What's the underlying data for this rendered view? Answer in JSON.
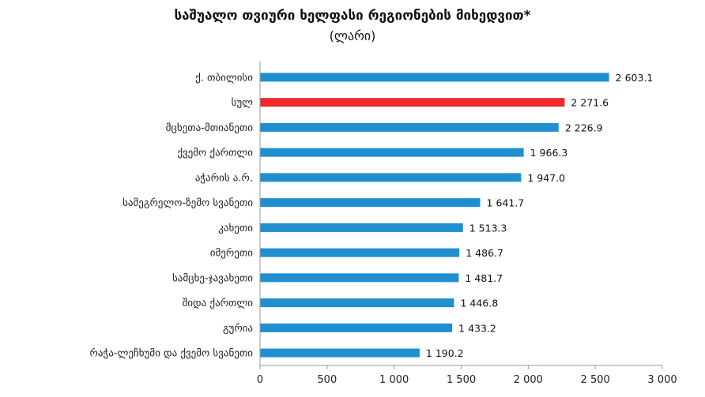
{
  "chart_data": {
    "type": "bar",
    "orientation": "horizontal",
    "title": "საშუალო თვიური ხელფასი რეგიონების მიხედვით*",
    "subtitle": "(ლარი)",
    "categories": [
      "ქ. თბილისი",
      "სულ",
      "მცხეთა-მთიანეთი",
      "ქვემო ქართლი",
      "აჭარის ა.რ.",
      "სამეგრელო-ზემო სვანეთი",
      "კახეთი",
      "იმერეთი",
      "სამცხე-ჯავახეთი",
      "შიდა ქართლი",
      "გურია",
      "რაჭა-ლეჩხუმი და ქვემო სვანეთი"
    ],
    "values": [
      2603.1,
      2271.6,
      2226.9,
      1966.3,
      1947.0,
      1641.7,
      1513.3,
      1486.7,
      1481.7,
      1446.8,
      1433.2,
      1190.2
    ],
    "value_labels": [
      "2 603.1",
      "2 271.6",
      "2 226.9",
      "1 966.3",
      "1 947.0",
      "1 641.7",
      "1 513.3",
      "1 486.7",
      "1 481.7",
      "1 446.8",
      "1 433.2",
      "1 190.2"
    ],
    "highlight_index": 1,
    "xlim": [
      0,
      3000
    ],
    "xticks": [
      0,
      500,
      1000,
      1500,
      2000,
      2500,
      3000
    ],
    "xtick_labels": [
      "0",
      "500",
      "1 000",
      "1 500",
      "2 000",
      "2 500",
      "3 000"
    ],
    "grid": false,
    "colors": {
      "bar": "#1f8fd0",
      "highlight": "#ee2a2a",
      "axis": "#999999"
    }
  }
}
